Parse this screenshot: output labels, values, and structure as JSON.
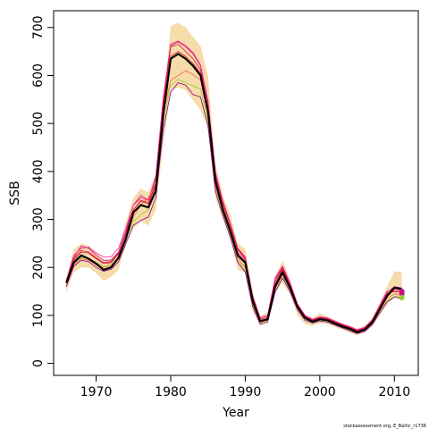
{
  "chart_data": {
    "type": "line",
    "xlabel": "Year",
    "ylabel": "SSB",
    "xlim": [
      1964.3,
      2013.2
    ],
    "ylim": [
      -25,
      735
    ],
    "x_ticks": [
      1970,
      1980,
      1990,
      2000,
      2010
    ],
    "y_ticks": [
      0,
      100,
      200,
      300,
      400,
      500,
      600,
      700
    ],
    "colors": {
      "band": "#f5dcaa",
      "main": "#000000",
      "retro": [
        "#dc143c",
        "#c71585",
        "#ff1493",
        "#ff6347",
        "#9acd32",
        "#8b008b"
      ],
      "final_point": "#c71585"
    },
    "years": [
      1966,
      1967,
      1968,
      1969,
      1970,
      1971,
      1972,
      1973,
      1974,
      1975,
      1976,
      1977,
      1978,
      1979,
      1980,
      1981,
      1982,
      1983,
      1984,
      1985,
      1986,
      1987,
      1988,
      1989,
      1990,
      1991,
      1992,
      1993,
      1994,
      1995,
      1996,
      1997,
      1998,
      1999,
      2000,
      2001,
      2002,
      2003,
      2004,
      2005,
      2006,
      2007,
      2008,
      2009,
      2010,
      2011
    ],
    "band_upper": [
      178,
      237,
      250,
      245,
      232,
      215,
      218,
      233,
      295,
      345,
      365,
      355,
      395,
      540,
      703,
      710,
      700,
      680,
      662,
      600,
      415,
      350,
      310,
      250,
      238,
      150,
      98,
      108,
      180,
      215,
      175,
      125,
      102,
      95,
      105,
      98,
      90,
      84,
      78,
      73,
      78,
      95,
      125,
      160,
      192,
      190
    ],
    "band_lower": [
      150,
      190,
      200,
      200,
      188,
      172,
      180,
      195,
      248,
      282,
      296,
      288,
      320,
      455,
      570,
      575,
      570,
      548,
      528,
      490,
      345,
      300,
      262,
      195,
      190,
      108,
      78,
      88,
      148,
      168,
      142,
      100,
      82,
      78,
      84,
      82,
      76,
      70,
      64,
      58,
      65,
      78,
      100,
      122,
      138,
      130
    ],
    "series": [
      {
        "values": [
          168,
          210,
          225,
          218,
          208,
          195,
          200,
          220,
          260,
          315,
          330,
          325,
          360,
          520,
          635,
          645,
          635,
          620,
          600,
          525,
          380,
          320,
          275,
          225,
          210,
          130,
          88,
          92,
          160,
          190,
          158,
          118,
          95,
          87,
          92,
          90,
          83,
          77,
          72,
          65,
          70,
          85,
          112,
          140,
          158,
          155
        ]
      },
      {
        "values": [
          165,
          215,
          232,
          230,
          218,
          208,
          210,
          228,
          272,
          320,
          338,
          332,
          370,
          528,
          640,
          650,
          640,
          625,
          605,
          530,
          385,
          325,
          282,
          230,
          215,
          135,
          92,
          97,
          165,
          195,
          162,
          120,
          97,
          89,
          94,
          92,
          85,
          79,
          74,
          67,
          72,
          87,
          115,
          145,
          152,
          150
        ]
      },
      {
        "values": [
          170,
          220,
          245,
          240,
          225,
          215,
          215,
          232,
          275,
          330,
          350,
          340,
          385,
          552,
          662,
          670,
          660,
          645,
          620,
          545,
          395,
          335,
          290,
          238,
          220,
          140,
          95,
          100,
          175,
          200,
          165,
          122,
          99,
          91,
          96,
          94,
          87,
          81,
          76,
          69,
          74,
          89,
          118,
          148,
          160,
          157
        ]
      },
      {
        "values": [
          172,
          225,
          240,
          242,
          230,
          222,
          222,
          240,
          282,
          330,
          345,
          340,
          390,
          555,
          665,
          672,
          662,
          648,
          622,
          548,
          398,
          338,
          292,
          240,
          222,
          138,
          95,
          100,
          178,
          203,
          168,
          124,
          100,
          92,
          97,
          95,
          88,
          82,
          77,
          70,
          75,
          90,
          120,
          150,
          155,
          153
        ]
      },
      {
        "values": [
          165,
          205,
          218,
          215,
          205,
          200,
          205,
          220,
          265,
          305,
          330,
          345,
          375,
          520,
          590,
          600,
          610,
          602,
          590,
          515,
          370,
          315,
          270,
          218,
          200,
          125,
          85,
          90,
          155,
          185,
          155,
          118,
          95,
          87,
          92,
          90,
          83,
          77,
          72,
          66,
          70,
          85,
          110,
          135,
          145,
          143
        ]
      },
      {
        "values": [
          162,
          208,
          220,
          218,
          210,
          202,
          206,
          222,
          260,
          295,
          310,
          320,
          360,
          505,
          580,
          592,
          585,
          578,
          572,
          505,
          365,
          312,
          268,
          214,
          195,
          122,
          84,
          88,
          150,
          180,
          152,
          115,
          93,
          86,
          90,
          88,
          81,
          75,
          70,
          64,
          68,
          82,
          106,
          130,
          140,
          138
        ]
      },
      {
        "values": [
          160,
          202,
          215,
          212,
          200,
          192,
          196,
          212,
          250,
          288,
          298,
          305,
          345,
          488,
          565,
          585,
          580,
          560,
          555,
          495,
          358,
          308,
          262,
          210,
          190,
          118,
          82,
          86,
          148,
          178,
          150,
          112,
          90,
          84,
          88,
          86,
          80,
          74,
          68,
          62,
          66,
          80,
          104,
          128,
          138,
          136
        ]
      },
      {
        "values": [
          170,
          218,
          235,
          232,
          220,
          210,
          212,
          230,
          270,
          320,
          340,
          335,
          375,
          540,
          660,
          665,
          650,
          635,
          612,
          535,
          390,
          332,
          288,
          236,
          218,
          136,
          92,
          96,
          170,
          198,
          164,
          121,
          98,
          90,
          95,
          93,
          86,
          80,
          75,
          68,
          73,
          88,
          116,
          146,
          150,
          148
        ]
      }
    ],
    "final_points": [
      {
        "x": 2011,
        "y": 150
      },
      {
        "x": 2011,
        "y": 145
      },
      {
        "x": 2011,
        "y": 137
      }
    ],
    "credit": "stockassessment.org, E_Baltic_r1736"
  }
}
